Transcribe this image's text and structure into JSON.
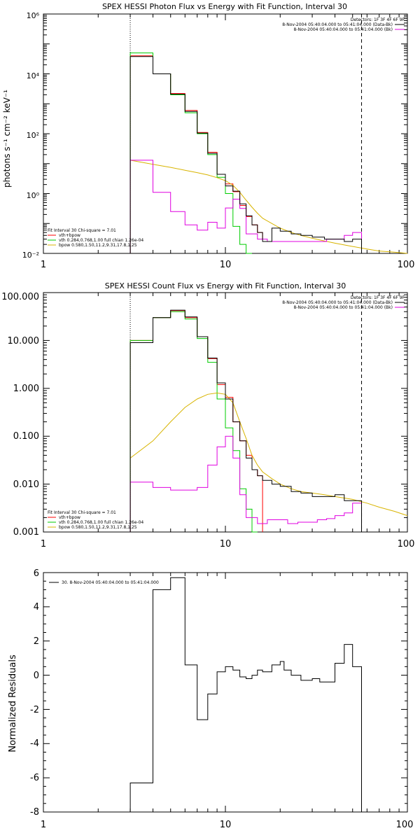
{
  "colors": {
    "axis": "#000000",
    "total": "#000000",
    "sum": "#ff0000",
    "vth": "#00cc00",
    "bpow": "#d8b400",
    "bk": "#e000e0"
  },
  "chart_data": [
    {
      "id": "photon",
      "type": "line",
      "title": "SPEX HESSI Photon Flux vs Energy with Fit Function, Interval 30",
      "xlabel": "",
      "ylabel": "photons s⁻¹ cm⁻² keV⁻¹",
      "xscale": "log",
      "yscale": "log",
      "xlim": [
        1,
        100
      ],
      "ylim": [
        0.01,
        1000000
      ],
      "ytick_labels": [
        "10⁻²",
        "10⁰",
        "10²",
        "10⁴",
        "10⁶"
      ],
      "xtick_labels": [
        "1",
        "10",
        "100"
      ],
      "dotted_x": 3,
      "dashed_x": 56,
      "info": [
        "Detectors: 1F 3F 4F 6F 9F",
        "8-Nov-2004 05:40:04.000 to 05:41:04.000 (Data-Bk)",
        "8-Nov-2004 05:40:04.000 to 05:41:04.000 (Bk)"
      ],
      "fit_info": [
        "Fit Interval 30   Chi-square = 7.01",
        "vth+bpow",
        "vth 0.284,0.768,1.00  full chian 1.26e-04",
        "bpow 0.580,1.50,11.2,9.31,17.8,1.25"
      ],
      "series": [
        {
          "key": "sum",
          "edges": [
            3,
            4,
            5,
            6,
            7,
            8,
            9,
            10,
            11,
            12,
            13,
            14,
            15,
            16
          ],
          "values": [
            40000,
            10000,
            2200,
            600,
            110,
            24,
            4.4,
            2.1,
            1.15,
            0.4,
            0.17,
            0.09,
            0.05,
            0.03
          ]
        },
        {
          "key": "vth",
          "edges": [
            3,
            4,
            5,
            6,
            7,
            8,
            9,
            10,
            11,
            12,
            13,
            14
          ],
          "values": [
            50000,
            10000,
            2000,
            500,
            100,
            20,
            3.5,
            1.0,
            0.08,
            0.02,
            0.01
          ]
        },
        {
          "key": "bpow",
          "x": [
            3,
            4,
            5,
            6,
            7,
            8,
            9,
            10,
            11,
            12,
            13,
            14,
            15,
            16,
            18,
            20,
            23,
            26,
            30,
            35,
            40,
            50,
            60,
            70,
            85,
            100
          ],
          "values": [
            13,
            9.5,
            7.5,
            6.0,
            5.0,
            4.2,
            3.4,
            2.7,
            1.9,
            1.1,
            0.6,
            0.35,
            0.22,
            0.15,
            0.1,
            0.07,
            0.05,
            0.04,
            0.032,
            0.026,
            0.022,
            0.017,
            0.014,
            0.012,
            0.011,
            0.01
          ]
        },
        {
          "key": "bk",
          "edges": [
            3,
            4,
            5,
            6,
            7,
            8,
            9,
            10,
            11,
            12,
            13,
            15,
            17,
            19,
            22,
            25,
            28,
            32,
            36,
            40,
            45,
            50,
            56
          ],
          "values": [
            13,
            1.1,
            0.25,
            0.09,
            0.06,
            0.11,
            0.07,
            0.33,
            0.65,
            0.32,
            0.045,
            0.03,
            0.025,
            0.025,
            0.025,
            0.025,
            0.025,
            0.025,
            0.03,
            0.03,
            0.04,
            0.05
          ]
        },
        {
          "key": "total",
          "edges": [
            3,
            4,
            5,
            6,
            7,
            8,
            9,
            10,
            11,
            12,
            13,
            14,
            15,
            16,
            18,
            20,
            23,
            26,
            30,
            35,
            40,
            45,
            50,
            56
          ],
          "values": [
            38000,
            10000,
            2100,
            550,
            105,
            22,
            4.4,
            1.8,
            1.2,
            0.45,
            0.18,
            0.09,
            0.05,
            0.025,
            0.07,
            0.055,
            0.045,
            0.04,
            0.035,
            0.03,
            0.03,
            0.025,
            0.03
          ]
        }
      ]
    },
    {
      "id": "count",
      "type": "line",
      "title": "SPEX HESSI Count Flux vs Energy with Fit Function, Interval 30",
      "xlabel": "",
      "ylabel": "",
      "xscale": "log",
      "yscale": "log",
      "xlim": [
        1,
        100
      ],
      "ylim": [
        0.001,
        100
      ],
      "ytick_labels": [
        "0.001",
        "0.010",
        "0.100",
        "1.000",
        "10.000",
        "100.000"
      ],
      "xtick_labels": [
        "1",
        "10",
        "100"
      ],
      "dotted_x": 3,
      "dashed_x": 56,
      "info": [
        "Detectors: 1F 3F 4F 6F 9F",
        "8-Nov-2004 05:40:04.000 to 05:41:04.000 (Data-Bk)",
        "8-Nov-2004 05:40:04.000 to 05:41:04.000 (Bk)"
      ],
      "fit_info": [
        "Fit Interval 30   Chi-square = 7.01",
        "vth+bpow",
        "vth 0.284,0.768,1.00  full chian 1.26e-04",
        "bpow 0.580,1.50,11.2,9.31,17.8,1.25"
      ],
      "series": [
        {
          "key": "sum",
          "edges": [
            3,
            4,
            5,
            6,
            7,
            8,
            9,
            10,
            11,
            12,
            13,
            14,
            15,
            16
          ],
          "values": [
            10,
            30,
            42,
            30,
            12,
            4.2,
            1.2,
            0.65,
            0.2,
            0.08,
            0.04,
            0.02,
            0.015
          ]
        },
        {
          "key": "vth",
          "edges": [
            3,
            4,
            5,
            6,
            7,
            8,
            9,
            10,
            11,
            12,
            13,
            14,
            15
          ],
          "values": [
            10,
            30,
            40,
            28,
            11,
            3.5,
            0.6,
            0.15,
            0.05,
            0.008,
            0.003,
            0.001
          ]
        },
        {
          "key": "bpow",
          "x": [
            3,
            4,
            5,
            6,
            7,
            8,
            9,
            10,
            11,
            12,
            13,
            14,
            15,
            16,
            18,
            20,
            23,
            26,
            30,
            35,
            40,
            50,
            60,
            70,
            85,
            100
          ],
          "values": [
            0.035,
            0.08,
            0.2,
            0.4,
            0.6,
            0.75,
            0.8,
            0.75,
            0.5,
            0.2,
            0.09,
            0.04,
            0.025,
            0.018,
            0.013,
            0.01,
            0.008,
            0.007,
            0.0065,
            0.006,
            0.0055,
            0.0048,
            0.004,
            0.0033,
            0.0027,
            0.0022
          ]
        },
        {
          "key": "bk",
          "edges": [
            3,
            4,
            5,
            6,
            7,
            8,
            9,
            10,
            11,
            12,
            13,
            15,
            17,
            19,
            22,
            25,
            28,
            32,
            36,
            40,
            45,
            50,
            56
          ],
          "values": [
            0.011,
            0.0085,
            0.0075,
            0.0075,
            0.0085,
            0.025,
            0.06,
            0.1,
            0.035,
            0.006,
            0.002,
            0.0015,
            0.0018,
            0.0018,
            0.0015,
            0.0016,
            0.0016,
            0.0018,
            0.0019,
            0.0022,
            0.0025,
            0.004
          ]
        },
        {
          "key": "total",
          "edges": [
            3,
            4,
            5,
            6,
            7,
            8,
            9,
            10,
            11,
            12,
            13,
            14,
            15,
            16,
            18,
            20,
            23,
            26,
            30,
            35,
            40,
            45,
            50,
            56
          ],
          "values": [
            9,
            30,
            43,
            31,
            12,
            4.3,
            1.3,
            0.6,
            0.2,
            0.08,
            0.035,
            0.02,
            0.015,
            0.012,
            0.01,
            0.009,
            0.007,
            0.0065,
            0.0055,
            0.0055,
            0.006,
            0.0045,
            0.0045
          ]
        }
      ]
    },
    {
      "id": "residuals",
      "type": "line",
      "title": "",
      "xlabel": "",
      "ylabel": "Normalized Residuals",
      "xscale": "log",
      "yscale": "linear",
      "xlim": [
        1,
        100
      ],
      "ylim": [
        -8,
        6
      ],
      "ytick_labels": [
        "-8",
        "-6",
        "-4",
        "-2",
        "0",
        "2",
        "4",
        "6"
      ],
      "xtick_labels": [
        "1",
        "10",
        "100"
      ],
      "legend": "30.  8-Nov-2004 05:40:04.000 to 05:41:04.000",
      "series": [
        {
          "key": "total",
          "edges": [
            3,
            4,
            5,
            6,
            7,
            8,
            9,
            10,
            11,
            12,
            13,
            14,
            15,
            16,
            18,
            20,
            21,
            23,
            26,
            30,
            33,
            37,
            40,
            45,
            50,
            56
          ],
          "values": [
            -6.3,
            5.0,
            5.7,
            0.6,
            -2.6,
            -1.1,
            0.2,
            0.5,
            0.3,
            -0.1,
            -0.2,
            0.0,
            0.3,
            0.2,
            0.6,
            0.8,
            0.3,
            0.0,
            -0.3,
            -0.2,
            -0.4,
            -0.4,
            0.7,
            1.8,
            0.5
          ]
        }
      ]
    }
  ]
}
